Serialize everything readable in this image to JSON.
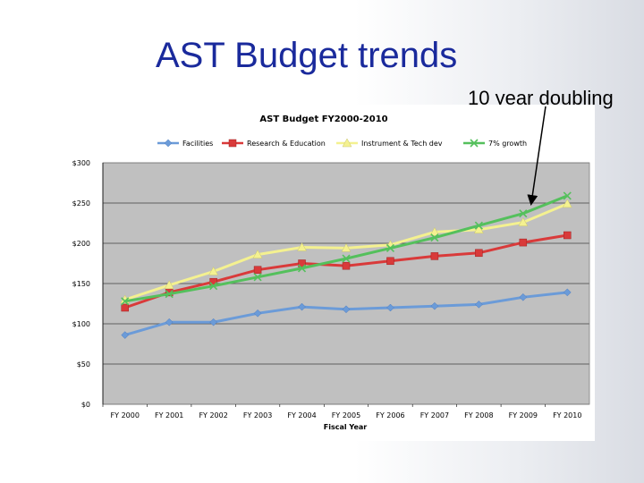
{
  "slide": {
    "title": "AST Budget trends",
    "callout": "10 year doubling"
  },
  "chart_data": {
    "type": "line",
    "title": "AST Budget FY2000-2010",
    "xlabel": "Fiscal Year",
    "ylabel": "",
    "categories": [
      "FY 2000",
      "FY 2001",
      "FY 2002",
      "FY 2003",
      "FY 2004",
      "FY 2005",
      "FY 2006",
      "FY 2007",
      "FY 2008",
      "FY 2009",
      "FY 2010"
    ],
    "ylim": [
      0,
      300
    ],
    "yticks": [
      0,
      50,
      100,
      150,
      200,
      250,
      300
    ],
    "ytick_labels": [
      "$0",
      "$50",
      "$100",
      "$150",
      "$200",
      "$250",
      "$300"
    ],
    "grid": true,
    "legend_position": "top",
    "plot_background": "#c0c0c0",
    "series": [
      {
        "name": "Facilities",
        "color": "#6b9bd8",
        "marker": "diamond",
        "values": [
          86,
          102,
          102,
          113,
          121,
          118,
          120,
          122,
          124,
          133,
          139
        ]
      },
      {
        "name": "Research & Education",
        "color": "#d93a3a",
        "marker": "square",
        "values": [
          120,
          139,
          152,
          167,
          175,
          172,
          178,
          184,
          188,
          201,
          210
        ]
      },
      {
        "name": "Instrument & Tech dev",
        "color": "#f4f190",
        "marker": "triangle",
        "values": [
          130,
          148,
          165,
          186,
          195,
          194,
          198,
          214,
          217,
          226,
          249
        ]
      },
      {
        "name": "7% growth",
        "color": "#54c05c",
        "marker": "x",
        "values": [
          128,
          137,
          147,
          158,
          169,
          181,
          194,
          207,
          222,
          237,
          259
        ]
      }
    ]
  }
}
